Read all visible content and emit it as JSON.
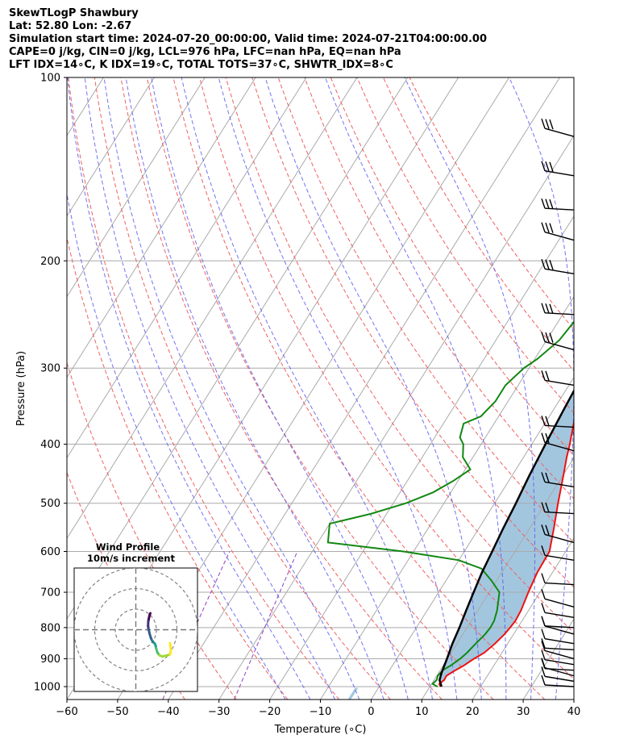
{
  "header": {
    "line1": "SkewTLogP Shawbury",
    "line2": "Lat: 52.80   Lon: -2.67",
    "line3": "Simulation start time: 2024-07-20_00:00:00, Valid time: 2024-07-21T04:00:00.00",
    "line4": "CAPE=0 j/kg, CIN=0 j/kg, LCL=976 hPa, LFC=nan hPa, EQ=nan hPa",
    "line5": "LFT IDX=14∘C, K IDX=19∘C, TOTAL TOTS=37∘C, SHWTR_IDX=8∘C"
  },
  "chart_data": {
    "type": "line",
    "xlabel": "Temperature (∘C)",
    "ylabel": "Pressure (hPa)",
    "xlim": [
      -60,
      40
    ],
    "ylim": [
      1050,
      100
    ],
    "y_scale": "log",
    "x_ticks": [
      -60,
      -50,
      -40,
      -30,
      -20,
      -10,
      0,
      10,
      20,
      30,
      40
    ],
    "x_tick_labels": [
      "−60",
      "−50",
      "−40",
      "−30",
      "−20",
      "−10",
      "0",
      "10",
      "20",
      "30",
      "40"
    ],
    "y_ticks": [
      1000,
      900,
      800,
      700,
      600,
      500,
      400,
      300,
      200,
      100
    ],
    "y_tick_labels": [
      "1000",
      "900",
      "800",
      "700",
      "600",
      "500",
      "400",
      "300",
      "200",
      "100"
    ],
    "grid": true,
    "colors": {
      "temperature": "#ee1111",
      "dewpoint": "#118811",
      "parcel": "#000000",
      "fill": "#a3c6df",
      "dry_adiabat": "#ef6060",
      "moist_adiabat": "#5a5aee",
      "mixing_ratio": "#9040c0",
      "isotherm": "#aaaaaa"
    },
    "series": [
      {
        "pressure": [
          1000,
          990,
          975,
          960,
          940,
          925,
          900,
          880,
          850,
          820,
          800,
          780,
          750,
          700,
          650,
          600,
          550,
          500,
          450,
          420,
          400,
          370,
          340,
          300,
          270,
          250,
          230,
          210,
          200,
          180,
          160,
          145,
          130,
          118,
          108,
          100
        ],
        "temperature": [
          12.1,
          11.5,
          12.0,
          11.9,
          13.0,
          14.0,
          15.2,
          16.5,
          17.5,
          18.2,
          18.5,
          18.7,
          18.5,
          17.7,
          17.0,
          16.8,
          14.8,
          12.5,
          10.1,
          8.5,
          7.5,
          5.7,
          4.6,
          3.3,
          2.3,
          1.5,
          1.2,
          0.8,
          0.6,
          0.0,
          -1.4,
          -2.0,
          -2.6,
          -3.3,
          -4.0,
          -4.6
        ]
      },
      {
        "pressure": [
          1000,
          990,
          975,
          960,
          940,
          925,
          900,
          880,
          850,
          820,
          800,
          780,
          750,
          700,
          670,
          640,
          620,
          600,
          580,
          550,
          540,
          520,
          500,
          480,
          460,
          440,
          420,
          400,
          390,
          370,
          360,
          340,
          320,
          300,
          290,
          270,
          250,
          230,
          210,
          200,
          180,
          170,
          150,
          130,
          110,
          100
        ],
        "dewpoint": [
          11.5,
          10.2,
          10.5,
          10.2,
          10.5,
          11.4,
          12.5,
          13.1,
          13.7,
          14.4,
          14.6,
          14.5,
          13.8,
          12.0,
          9.0,
          5.5,
          0.0,
          -12.0,
          -28.0,
          -29.5,
          -30.0,
          -23.0,
          -17.5,
          -13.5,
          -11.0,
          -9.0,
          -12.0,
          -13.5,
          -15.0,
          -16.0,
          -13.5,
          -12.5,
          -12.5,
          -11.0,
          -9.5,
          -7.5,
          -6.8,
          -6.5,
          -6.5,
          -6.2,
          -3.8,
          -1.5,
          4.5,
          10.5,
          16.2,
          19.0
        ]
      },
      {
        "pressure": [
          1000,
          990,
          976,
          950,
          900,
          850,
          800,
          750,
          700,
          650,
          600,
          550,
          500,
          450,
          400,
          350,
          300,
          250,
          200,
          150,
          125,
          100
        ],
        "parcel": [
          12.3,
          11.8,
          11.1,
          10.6,
          9.9,
          9.1,
          8.5,
          7.7,
          6.9,
          6.1,
          5.5,
          4.8,
          4.2,
          3.4,
          2.7,
          2.0,
          1.3,
          0.5,
          -0.4,
          -1.6,
          -2.6,
          -4.0
        ]
      }
    ],
    "wind_barbs": {
      "pressure": [
        125,
        145,
        165,
        185,
        210,
        245,
        280,
        320,
        375,
        410,
        470,
        520,
        580,
        620,
        680,
        740,
        770,
        800,
        820,
        850,
        870,
        900,
        920,
        940,
        960,
        980,
        1000
      ]
    },
    "inset": {
      "title": "Wind Profile",
      "subtitle": "10m/s increment",
      "rings": [
        10,
        20,
        30
      ],
      "hodograph": {
        "u": [
          0.0,
          -0.3,
          -0.6,
          -1.0,
          -1.1,
          -0.8,
          -0.4,
          0.2,
          0.8,
          1.4,
          2.0,
          2.3,
          2.6,
          2.8,
          3.5,
          4.4,
          5.8,
          7.8,
          9.6,
          10.0,
          9.6
        ],
        "v": [
          8.0,
          7.2,
          6.0,
          4.0,
          1.8,
          0.0,
          -1.8,
          -3.8,
          -5.2,
          -6.0,
          -6.6,
          -7.0,
          -7.8,
          -9.0,
          -11.2,
          -12.4,
          -13.0,
          -12.6,
          -12.0,
          -10.0,
          -6.5
        ]
      }
    }
  }
}
